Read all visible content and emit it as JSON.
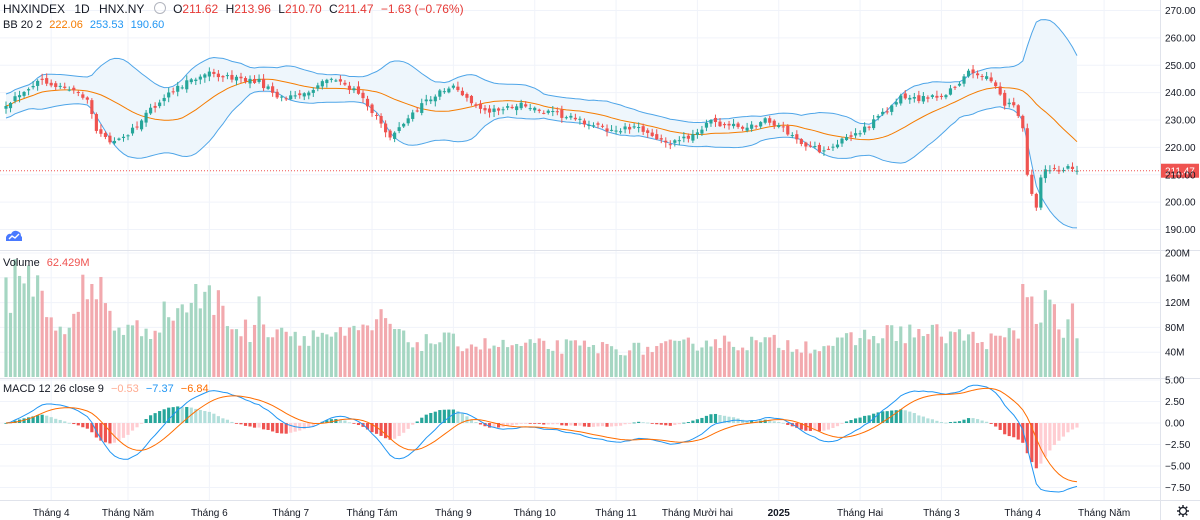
{
  "header": {
    "symbol": "HNXINDEX",
    "interval": "1D",
    "exchange": "HNX.NY",
    "open_label": "O",
    "open": "211.62",
    "high_label": "H",
    "high": "213.96",
    "low_label": "L",
    "low": "210.70",
    "close_label": "C",
    "close": "211.47",
    "change": "−1.63 (−0.76%)"
  },
  "bb": {
    "label": "BB 20 2",
    "basis": "222.06",
    "upper": "253.53",
    "lower": "190.60"
  },
  "volume": {
    "label": "Volume",
    "value": "62.429M"
  },
  "macd": {
    "label": "MACD 12 26 close 9",
    "hist": "−0.53",
    "macd": "−7.37",
    "signal": "−6.84"
  },
  "colors": {
    "up": "#26a69a",
    "down": "#ef5350",
    "vol_up": "#a5d6c2",
    "vol_down": "#f2a9ae",
    "bb_basis": "#f57c00",
    "bb_band": "#4ea5e8",
    "bb_fill": "#eef6fc",
    "macd_line": "#2196f3",
    "signal_line": "#ff6d00",
    "hist_up_strong": "#26a69a",
    "hist_up_weak": "#b2dfdb",
    "hist_dn_strong": "#ef5350",
    "hist_dn_weak": "#ffcdd2",
    "grid": "#f0f3fa",
    "price_line": "#ef5350",
    "axis_text": "#131722"
  },
  "chart_data": [
    {
      "type": "candlestick",
      "title": "HNXINDEX 1D HNX.NY",
      "ylim": [
        185,
        272
      ],
      "yticks": [
        190,
        200,
        210,
        220,
        230,
        240,
        250,
        260,
        270
      ],
      "ytick_labels": [
        "190.00",
        "200.00",
        "210.00",
        "220.00",
        "230.00",
        "240.00",
        "250.00",
        "260.00",
        "270.00"
      ],
      "last_price": 211.47,
      "last_price_label": "211.47",
      "x_labels": [
        "Tháng 4",
        "Tháng Năm",
        "Tháng 6",
        "Tháng 7",
        "Tháng Tám",
        "Tháng 9",
        "Tháng 10",
        "Tháng 11",
        "Tháng Mười hai",
        "2025",
        "Tháng Hai",
        "Tháng 3",
        "Tháng 4",
        "Tháng Năm"
      ],
      "x_label_bar_index": [
        10,
        27,
        45,
        63,
        81,
        99,
        117,
        135,
        153,
        171,
        189,
        207,
        225,
        243
      ],
      "x_label_bold": [
        false,
        false,
        false,
        false,
        false,
        false,
        false,
        false,
        false,
        true,
        false,
        false,
        false,
        false
      ],
      "close_anchors": [
        [
          0,
          236
        ],
        [
          4,
          241
        ],
        [
          8,
          245
        ],
        [
          12,
          242
        ],
        [
          16,
          240
        ],
        [
          18,
          238
        ],
        [
          20,
          226
        ],
        [
          23,
          222
        ],
        [
          26,
          224
        ],
        [
          29,
          228
        ],
        [
          32,
          234
        ],
        [
          36,
          240
        ],
        [
          40,
          244
        ],
        [
          44,
          247
        ],
        [
          48,
          246
        ],
        [
          52,
          245
        ],
        [
          56,
          244
        ],
        [
          60,
          239
        ],
        [
          64,
          238
        ],
        [
          68,
          242
        ],
        [
          72,
          245
        ],
        [
          76,
          242
        ],
        [
          80,
          236
        ],
        [
          83,
          228
        ],
        [
          85,
          223
        ],
        [
          88,
          229
        ],
        [
          92,
          236
        ],
        [
          96,
          240
        ],
        [
          99,
          242
        ],
        [
          102,
          238
        ],
        [
          106,
          233
        ],
        [
          110,
          234
        ],
        [
          114,
          236
        ],
        [
          118,
          233
        ],
        [
          122,
          232
        ],
        [
          126,
          230
        ],
        [
          130,
          228
        ],
        [
          134,
          226
        ],
        [
          138,
          227
        ],
        [
          142,
          226
        ],
        [
          146,
          221
        ],
        [
          149,
          222
        ],
        [
          153,
          226
        ],
        [
          156,
          229
        ],
        [
          160,
          228
        ],
        [
          164,
          227
        ],
        [
          168,
          230
        ],
        [
          171,
          228
        ],
        [
          174,
          224
        ],
        [
          177,
          221
        ],
        [
          180,
          219
        ],
        [
          183,
          221
        ],
        [
          186,
          223
        ],
        [
          190,
          227
        ],
        [
          194,
          232
        ],
        [
          198,
          238
        ],
        [
          202,
          238
        ],
        [
          206,
          238
        ],
        [
          210,
          242
        ],
        [
          213,
          248
        ],
        [
          216,
          246
        ],
        [
          219,
          243
        ],
        [
          221,
          236
        ],
        [
          223,
          236
        ],
        [
          225,
          227
        ],
        [
          226,
          210
        ],
        [
          227,
          203
        ],
        [
          228,
          198
        ],
        [
          229,
          209
        ],
        [
          230,
          213
        ],
        [
          231,
          212
        ],
        [
          233,
          211
        ],
        [
          235,
          213
        ],
        [
          237,
          211.47
        ]
      ],
      "big_move_bars": [
        20,
        84,
        213,
        224,
        225,
        226,
        227,
        228,
        229
      ],
      "bb": {
        "period": 20,
        "mult": 2,
        "basis_last": 222.06,
        "upper_last": 253.53,
        "lower_last": 190.6
      }
    },
    {
      "type": "bar",
      "title": "Volume",
      "ylim": [
        0,
        200
      ],
      "unit": "M",
      "yticks": [
        40,
        80,
        120,
        160,
        200
      ],
      "ytick_labels": [
        "40M",
        "80M",
        "120M",
        "160M",
        "200M"
      ],
      "volume_anchors": [
        [
          0,
          130
        ],
        [
          6,
          160
        ],
        [
          10,
          95
        ],
        [
          14,
          75
        ],
        [
          18,
          120
        ],
        [
          21,
          140
        ],
        [
          24,
          85
        ],
        [
          28,
          75
        ],
        [
          32,
          80
        ],
        [
          36,
          105
        ],
        [
          40,
          115
        ],
        [
          45,
          125
        ],
        [
          50,
          85
        ],
        [
          55,
          70
        ],
        [
          60,
          85
        ],
        [
          65,
          65
        ],
        [
          70,
          70
        ],
        [
          75,
          65
        ],
        [
          80,
          75
        ],
        [
          84,
          95
        ],
        [
          88,
          60
        ],
        [
          92,
          55
        ],
        [
          96,
          60
        ],
        [
          100,
          55
        ],
        [
          110,
          50
        ],
        [
          120,
          50
        ],
        [
          130,
          48
        ],
        [
          140,
          45
        ],
        [
          150,
          50
        ],
        [
          155,
          60
        ],
        [
          160,
          55
        ],
        [
          165,
          55
        ],
        [
          170,
          55
        ],
        [
          175,
          52
        ],
        [
          180,
          50
        ],
        [
          185,
          55
        ],
        [
          190,
          65
        ],
        [
          195,
          70
        ],
        [
          200,
          72
        ],
        [
          205,
          70
        ],
        [
          210,
          68
        ],
        [
          215,
          60
        ],
        [
          220,
          58
        ],
        [
          224,
          75
        ],
        [
          225,
          150
        ],
        [
          226,
          120
        ],
        [
          227,
          130
        ],
        [
          228,
          90
        ],
        [
          230,
          140
        ],
        [
          232,
          100
        ],
        [
          234,
          75
        ],
        [
          236,
          95
        ],
        [
          237,
          62.429
        ]
      ],
      "volume_spikes": [
        [
          2,
          190
        ],
        [
          5,
          180
        ],
        [
          17,
          165
        ],
        [
          19,
          150
        ],
        [
          42,
          150
        ],
        [
          47,
          140
        ],
        [
          56,
          130
        ],
        [
          84,
          95
        ],
        [
          225,
          150
        ],
        [
          230,
          140
        ]
      ]
    },
    {
      "type": "macd",
      "title": "MACD 12 26 close 9",
      "ylim": [
        -8.6,
        5.4
      ],
      "yticks": [
        -7.5,
        -5,
        -2.5,
        0,
        2.5,
        5
      ],
      "ytick_labels": [
        "−7.50",
        "−5.00",
        "−2.50",
        "0.00",
        "2.50",
        "5.00"
      ],
      "fast": 12,
      "slow": 26,
      "signal": 9,
      "last_macd": -7.37,
      "last_signal": -6.84,
      "last_hist": -0.53
    }
  ]
}
